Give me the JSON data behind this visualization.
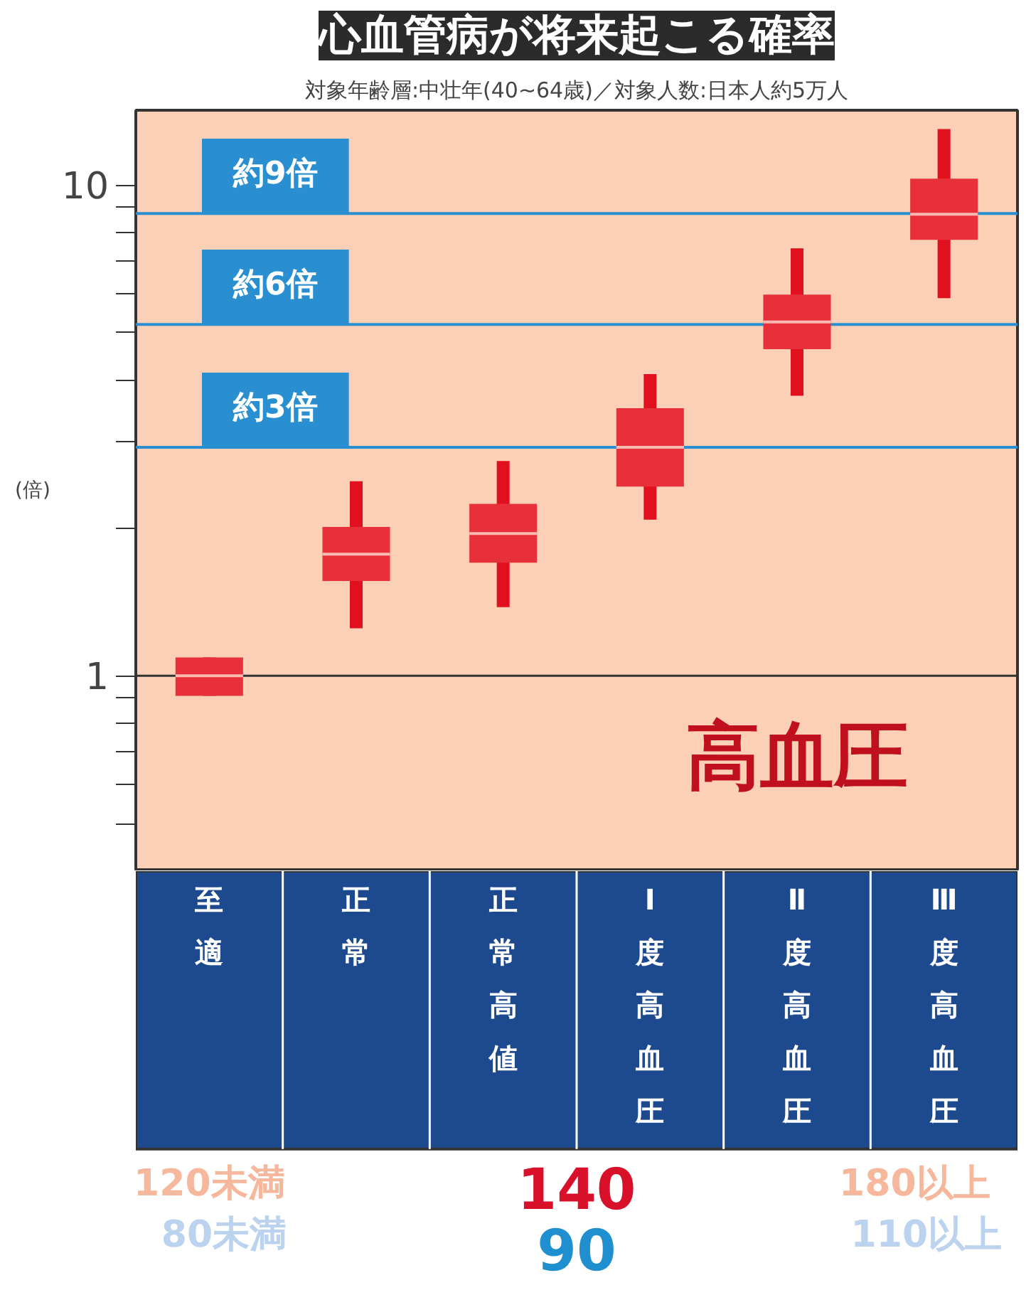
{
  "chart_data": {
    "type": "box",
    "title": "心血管病が将来起こる確率",
    "subtitle": "対象年齢層:中壮年(40~64歳)／対象人数:日本人約5万人",
    "ylabel": "(倍)",
    "categories": [
      "至適",
      "正常",
      "正常高値",
      "Ⅰ度高血圧",
      "Ⅱ度高血圧",
      "Ⅲ度高血圧"
    ],
    "color": "#e8303a",
    "boxes": [
      {
        "low": 0.91,
        "q1": 0.91,
        "median": 1.0,
        "q3": 1.09,
        "high": 1.09
      },
      {
        "low": 1.25,
        "q1": 1.56,
        "median": 1.77,
        "q3": 2.01,
        "high": 2.49
      },
      {
        "low": 1.38,
        "q1": 1.7,
        "median": 1.95,
        "q3": 2.24,
        "high": 2.74
      },
      {
        "low": 2.08,
        "q1": 2.43,
        "median": 2.92,
        "q3": 3.51,
        "high": 4.12
      },
      {
        "low": 3.72,
        "q1": 4.63,
        "median": 5.26,
        "q3": 5.98,
        "high": 7.43
      },
      {
        "low": 5.88,
        "q1": 7.73,
        "median": 8.72,
        "q3": 10.3,
        "high": 13.0
      }
    ],
    "log": "y",
    "ylim": [
      0.4,
      14.2
    ],
    "yticks": [
      {
        "value": 0.5,
        "label": null
      },
      {
        "value": 0.6,
        "label": null
      },
      {
        "value": 0.7,
        "label": null
      },
      {
        "value": 0.8,
        "label": null
      },
      {
        "value": 0.9,
        "label": null
      },
      1,
      {
        "value": 2,
        "label": null
      },
      {
        "value": 3,
        "label": null
      },
      {
        "value": 4,
        "label": null
      },
      {
        "value": 5,
        "label": null
      },
      {
        "value": 6,
        "label": null
      },
      {
        "value": 7,
        "label": null
      },
      {
        "value": 8,
        "label": null
      },
      {
        "value": 9,
        "label": null
      },
      10
    ],
    "grid": false,
    "ref_lines": [
      {
        "axis": "y",
        "value": 1,
        "color": "#333333"
      },
      {
        "axis": "y",
        "value": 8.75,
        "label": "約9倍",
        "color": "#2a8fd0"
      },
      {
        "axis": "y",
        "value": 5.2,
        "label": "約6倍",
        "color": "#2a8fd0"
      },
      {
        "axis": "y",
        "value": 2.92,
        "label": "約3倍",
        "color": "#2a8fd0"
      }
    ],
    "annotations": [
      "120未満",
      "80未満",
      "140",
      "90",
      "180以上",
      "110以上",
      "高血圧"
    ]
  }
}
